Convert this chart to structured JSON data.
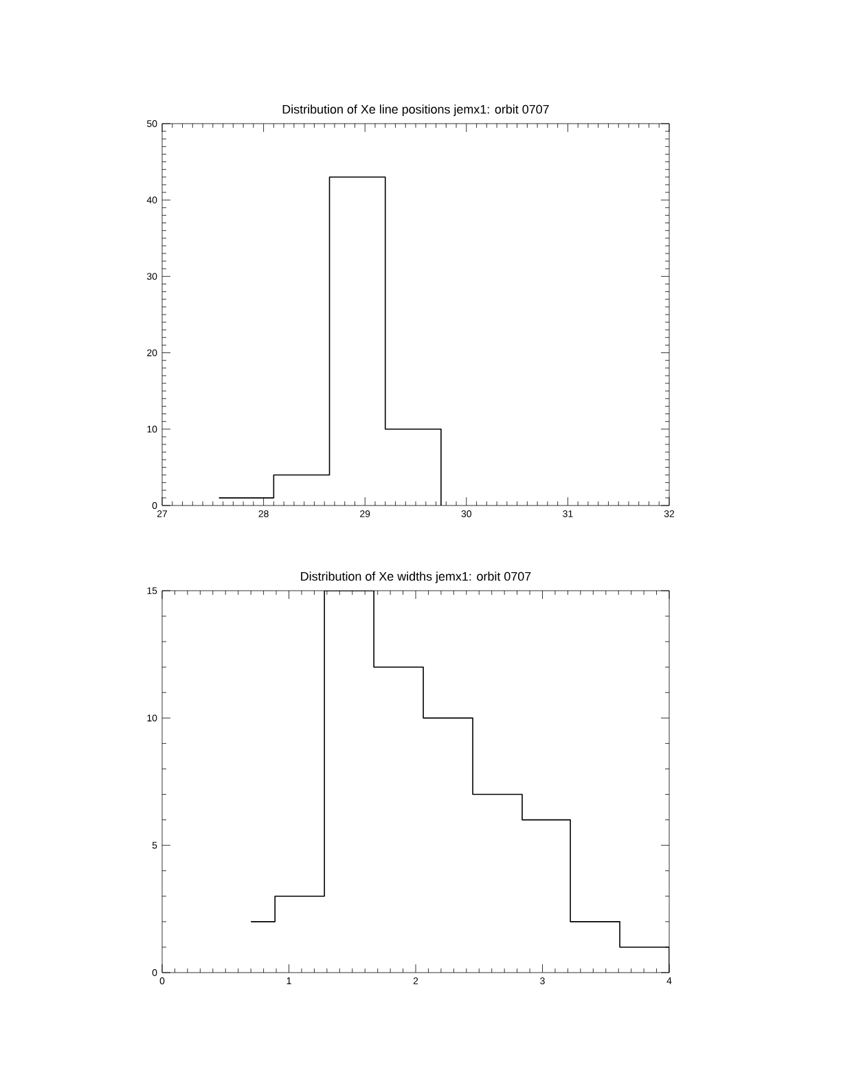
{
  "chart_data": [
    {
      "type": "histogram",
      "title": "Distribution of Xe line positions jemx1: orbit 0707",
      "bins": [
        27.56,
        28.1,
        28.65,
        29.2,
        29.75
      ],
      "values": [
        1,
        4,
        43,
        10
      ],
      "color": "#000000",
      "xlim": [
        27,
        32
      ],
      "ylim": [
        0,
        50
      ],
      "xticks": [
        27,
        28,
        29,
        30,
        31,
        32
      ],
      "yticks": [
        0,
        10,
        20,
        30,
        40,
        50
      ]
    },
    {
      "type": "histogram",
      "title": "Distribution of Xe widths jemx1: orbit 0707",
      "bins": [
        0.7,
        0.89,
        1.28,
        1.67,
        2.06,
        2.45,
        2.84,
        3.22,
        3.61,
        4.0
      ],
      "values": [
        2,
        3,
        15,
        12,
        10,
        7,
        6,
        2,
        1
      ],
      "color": "#000000",
      "xlim": [
        0,
        4
      ],
      "ylim": [
        0,
        15
      ],
      "xticks": [
        0,
        1,
        2,
        3,
        4
      ],
      "yticks": [
        0,
        5,
        10,
        15
      ]
    }
  ]
}
